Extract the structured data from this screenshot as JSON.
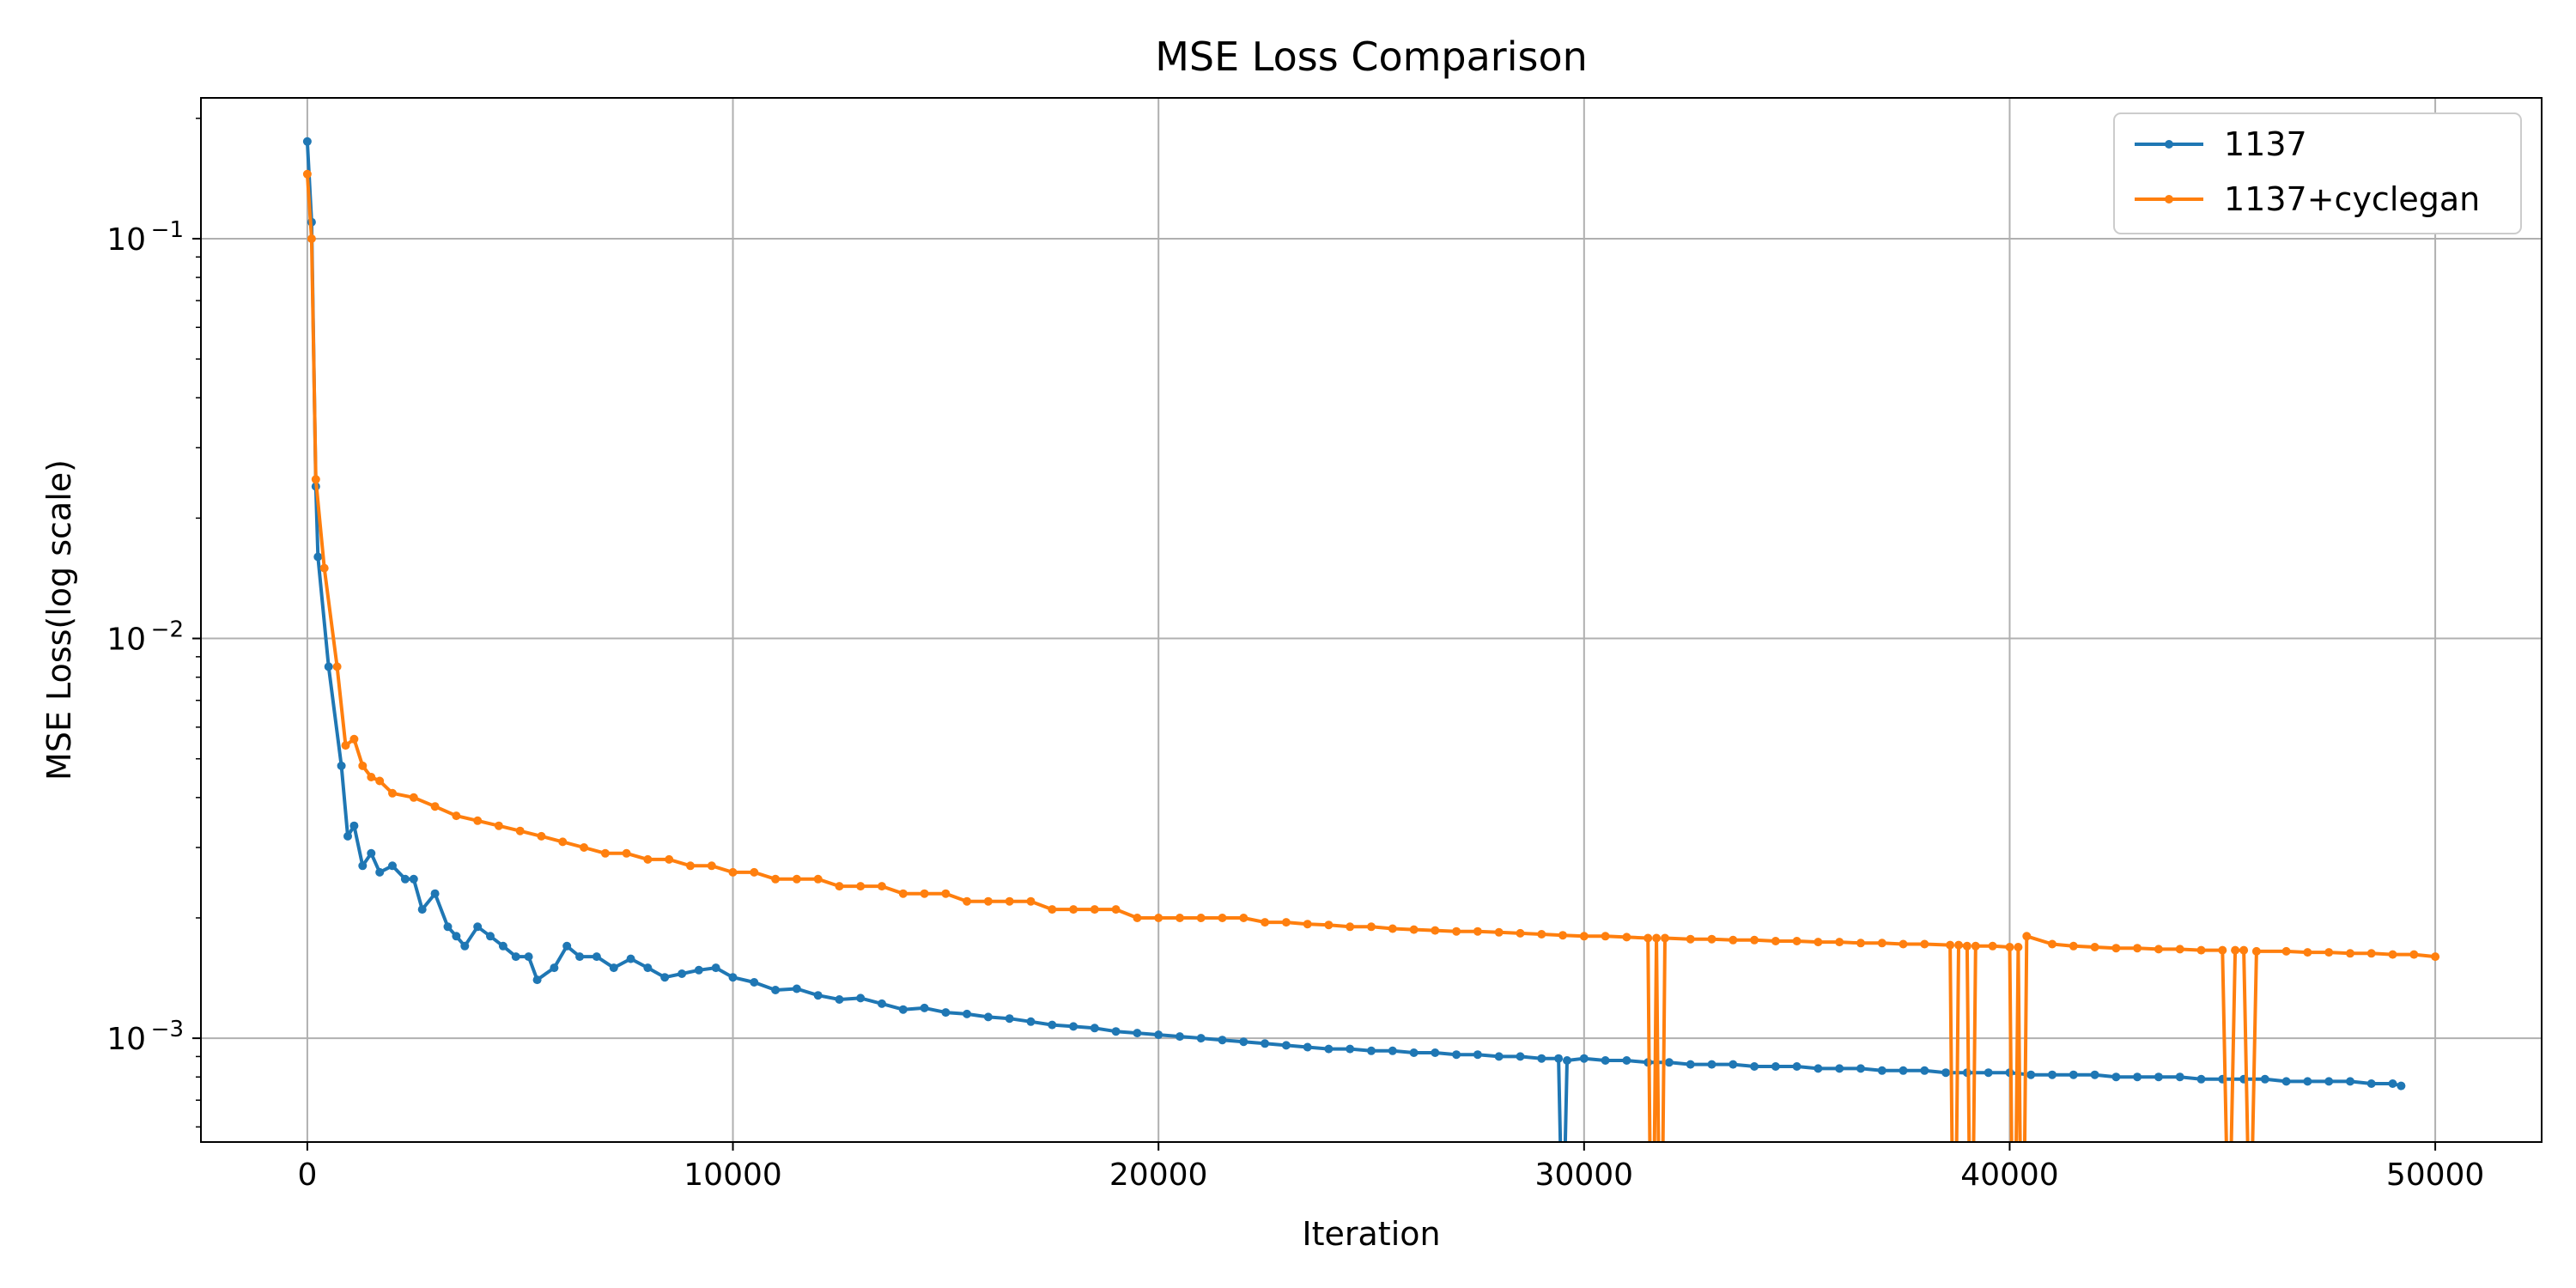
{
  "chart_data": {
    "type": "line",
    "title": "MSE Loss Comparison",
    "xlabel": "Iteration",
    "ylabel": "MSE Loss(log scale)",
    "xlim": [
      -2500,
      52500
    ],
    "ylim": [
      0.00055,
      0.225
    ],
    "yscale": "log",
    "grid": true,
    "legend_position": "top-right",
    "x_ticks": [
      0,
      10000,
      20000,
      30000,
      40000,
      50000
    ],
    "x_tick_labels": [
      "0",
      "10000",
      "20000",
      "30000",
      "40000",
      "50000"
    ],
    "y_ticks": [
      0.001,
      0.01,
      0.1
    ],
    "y_tick_labels": [
      {
        "base": "10",
        "exp": "−3"
      },
      {
        "base": "10",
        "exp": "−2"
      },
      {
        "base": "10",
        "exp": "−1"
      }
    ],
    "series": [
      {
        "name": "1137",
        "color": "#1f77b4",
        "points": [
          [
            0,
            0.175
          ],
          [
            100,
            0.11
          ],
          [
            200,
            0.024
          ],
          [
            250,
            0.016
          ],
          [
            500,
            0.0085
          ],
          [
            800,
            0.0048
          ],
          [
            950,
            0.0032
          ],
          [
            1100,
            0.0034
          ],
          [
            1300,
            0.0027
          ],
          [
            1500,
            0.0029
          ],
          [
            1700,
            0.0026
          ],
          [
            2000,
            0.0027
          ],
          [
            2300,
            0.0025
          ],
          [
            2500,
            0.0025
          ],
          [
            2700,
            0.0021
          ],
          [
            3000,
            0.0023
          ],
          [
            3300,
            0.0019
          ],
          [
            3500,
            0.0018
          ],
          [
            3700,
            0.0017
          ],
          [
            4000,
            0.0019
          ],
          [
            4300,
            0.0018
          ],
          [
            4600,
            0.0017
          ],
          [
            4900,
            0.0016
          ],
          [
            5200,
            0.0016
          ],
          [
            5400,
            0.0014
          ],
          [
            5800,
            0.0015
          ],
          [
            6100,
            0.0017
          ],
          [
            6400,
            0.0016
          ],
          [
            6800,
            0.0016
          ],
          [
            7200,
            0.0015
          ],
          [
            7600,
            0.00158
          ],
          [
            8000,
            0.0015
          ],
          [
            8400,
            0.00142
          ],
          [
            8800,
            0.00145
          ],
          [
            9200,
            0.00148
          ],
          [
            9600,
            0.0015
          ],
          [
            10000,
            0.00142
          ],
          [
            10500,
            0.00138
          ],
          [
            11000,
            0.00132
          ],
          [
            11500,
            0.00133
          ],
          [
            12000,
            0.00128
          ],
          [
            12500,
            0.00125
          ],
          [
            13000,
            0.00126
          ],
          [
            13500,
            0.00122
          ],
          [
            14000,
            0.00118
          ],
          [
            14500,
            0.00119
          ],
          [
            15000,
            0.00116
          ],
          [
            15500,
            0.00115
          ],
          [
            16000,
            0.00113
          ],
          [
            16500,
            0.00112
          ],
          [
            17000,
            0.0011
          ],
          [
            17500,
            0.00108
          ],
          [
            18000,
            0.00107
          ],
          [
            18500,
            0.00106
          ],
          [
            19000,
            0.00104
          ],
          [
            19500,
            0.00103
          ],
          [
            20000,
            0.00102
          ],
          [
            20500,
            0.00101
          ],
          [
            21000,
            0.001
          ],
          [
            21500,
            0.00099
          ],
          [
            22000,
            0.00098
          ],
          [
            22500,
            0.00097
          ],
          [
            23000,
            0.00096
          ],
          [
            23500,
            0.00095
          ],
          [
            24000,
            0.00094
          ],
          [
            24500,
            0.00094
          ],
          [
            25000,
            0.00093
          ],
          [
            25500,
            0.00093
          ],
          [
            26000,
            0.00092
          ],
          [
            26500,
            0.00092
          ],
          [
            27000,
            0.00091
          ],
          [
            27500,
            0.00091
          ],
          [
            28000,
            0.0009
          ],
          [
            28500,
            0.0009
          ],
          [
            29000,
            0.00089
          ],
          [
            29400,
            0.00089
          ],
          [
            29450,
            0.0005
          ],
          [
            29550,
            0.0005
          ],
          [
            29600,
            0.00088
          ],
          [
            30000,
            0.00089
          ],
          [
            30500,
            0.00088
          ],
          [
            31000,
            0.00088
          ],
          [
            31500,
            0.00087
          ],
          [
            32000,
            0.00087
          ],
          [
            32500,
            0.00086
          ],
          [
            33000,
            0.00086
          ],
          [
            33500,
            0.00086
          ],
          [
            34000,
            0.00085
          ],
          [
            34500,
            0.00085
          ],
          [
            35000,
            0.00085
          ],
          [
            35500,
            0.00084
          ],
          [
            36000,
            0.00084
          ],
          [
            36500,
            0.00084
          ],
          [
            37000,
            0.00083
          ],
          [
            37500,
            0.00083
          ],
          [
            38000,
            0.00083
          ],
          [
            38500,
            0.00082
          ],
          [
            39000,
            0.00082
          ],
          [
            39500,
            0.00082
          ],
          [
            40000,
            0.00082
          ],
          [
            40500,
            0.00081
          ],
          [
            41000,
            0.00081
          ],
          [
            41500,
            0.00081
          ],
          [
            42000,
            0.00081
          ],
          [
            42500,
            0.0008
          ],
          [
            43000,
            0.0008
          ],
          [
            43500,
            0.0008
          ],
          [
            44000,
            0.0008
          ],
          [
            44500,
            0.00079
          ],
          [
            45000,
            0.00079
          ],
          [
            45500,
            0.00079
          ],
          [
            46000,
            0.00079
          ],
          [
            46500,
            0.00078
          ],
          [
            47000,
            0.00078
          ],
          [
            47500,
            0.00078
          ],
          [
            48000,
            0.00078
          ],
          [
            48500,
            0.00077
          ],
          [
            49000,
            0.00077
          ],
          [
            49200,
            0.00076
          ]
        ]
      },
      {
        "name": "1137+cyclegan",
        "color": "#ff7f0e",
        "points": [
          [
            0,
            0.145
          ],
          [
            100,
            0.1
          ],
          [
            200,
            0.025
          ],
          [
            400,
            0.015
          ],
          [
            700,
            0.0085
          ],
          [
            900,
            0.0054
          ],
          [
            1100,
            0.0056
          ],
          [
            1300,
            0.0048
          ],
          [
            1500,
            0.0045
          ],
          [
            1700,
            0.0044
          ],
          [
            2000,
            0.0041
          ],
          [
            2500,
            0.004
          ],
          [
            3000,
            0.0038
          ],
          [
            3500,
            0.0036
          ],
          [
            4000,
            0.0035
          ],
          [
            4500,
            0.0034
          ],
          [
            5000,
            0.0033
          ],
          [
            5500,
            0.0032
          ],
          [
            6000,
            0.0031
          ],
          [
            6500,
            0.003
          ],
          [
            7000,
            0.0029
          ],
          [
            7500,
            0.0029
          ],
          [
            8000,
            0.0028
          ],
          [
            8500,
            0.0028
          ],
          [
            9000,
            0.0027
          ],
          [
            9500,
            0.0027
          ],
          [
            10000,
            0.0026
          ],
          [
            10500,
            0.0026
          ],
          [
            11000,
            0.0025
          ],
          [
            11500,
            0.0025
          ],
          [
            12000,
            0.0025
          ],
          [
            12500,
            0.0024
          ],
          [
            13000,
            0.0024
          ],
          [
            13500,
            0.0024
          ],
          [
            14000,
            0.0023
          ],
          [
            14500,
            0.0023
          ],
          [
            15000,
            0.0023
          ],
          [
            15500,
            0.0022
          ],
          [
            16000,
            0.0022
          ],
          [
            16500,
            0.0022
          ],
          [
            17000,
            0.0022
          ],
          [
            17500,
            0.0021
          ],
          [
            18000,
            0.0021
          ],
          [
            18500,
            0.0021
          ],
          [
            19000,
            0.0021
          ],
          [
            19500,
            0.002
          ],
          [
            20000,
            0.002
          ],
          [
            20500,
            0.002
          ],
          [
            21000,
            0.002
          ],
          [
            21500,
            0.002
          ],
          [
            22000,
            0.002
          ],
          [
            22500,
            0.00195
          ],
          [
            23000,
            0.00195
          ],
          [
            23500,
            0.00193
          ],
          [
            24000,
            0.00192
          ],
          [
            24500,
            0.0019
          ],
          [
            25000,
            0.0019
          ],
          [
            25500,
            0.00188
          ],
          [
            26000,
            0.00187
          ],
          [
            26500,
            0.00186
          ],
          [
            27000,
            0.00185
          ],
          [
            27500,
            0.00185
          ],
          [
            28000,
            0.00184
          ],
          [
            28500,
            0.00183
          ],
          [
            29000,
            0.00182
          ],
          [
            29500,
            0.00181
          ],
          [
            30000,
            0.0018
          ],
          [
            30500,
            0.0018
          ],
          [
            31000,
            0.00179
          ],
          [
            31500,
            0.00178
          ],
          [
            31550,
            0.0005
          ],
          [
            31650,
            0.0005
          ],
          [
            31700,
            0.00178
          ],
          [
            31750,
            0.0005
          ],
          [
            31850,
            0.0005
          ],
          [
            31900,
            0.00178
          ],
          [
            32500,
            0.00177
          ],
          [
            33000,
            0.00177
          ],
          [
            33500,
            0.00176
          ],
          [
            34000,
            0.00176
          ],
          [
            34500,
            0.00175
          ],
          [
            35000,
            0.00175
          ],
          [
            35500,
            0.00174
          ],
          [
            36000,
            0.00174
          ],
          [
            36500,
            0.00173
          ],
          [
            37000,
            0.00173
          ],
          [
            37500,
            0.00172
          ],
          [
            38000,
            0.00172
          ],
          [
            38600,
            0.00171
          ],
          [
            38650,
            0.0005
          ],
          [
            38750,
            0.0005
          ],
          [
            38800,
            0.00171
          ],
          [
            39000,
            0.0017
          ],
          [
            39050,
            0.0005
          ],
          [
            39150,
            0.0005
          ],
          [
            39200,
            0.0017
          ],
          [
            39600,
            0.0017
          ],
          [
            40000,
            0.00169
          ],
          [
            40050,
            0.0005
          ],
          [
            40150,
            0.0005
          ],
          [
            40200,
            0.00169
          ],
          [
            40250,
            0.0005
          ],
          [
            40350,
            0.0005
          ],
          [
            40400,
            0.0018
          ],
          [
            41000,
            0.00172
          ],
          [
            41500,
            0.0017
          ],
          [
            42000,
            0.00169
          ],
          [
            42500,
            0.00168
          ],
          [
            43000,
            0.00168
          ],
          [
            43500,
            0.00167
          ],
          [
            44000,
            0.00167
          ],
          [
            44500,
            0.00166
          ],
          [
            45000,
            0.00166
          ],
          [
            45100,
            0.0005
          ],
          [
            45200,
            0.0005
          ],
          [
            45300,
            0.00166
          ],
          [
            45500,
            0.00166
          ],
          [
            45600,
            0.0005
          ],
          [
            45700,
            0.0005
          ],
          [
            45800,
            0.00165
          ],
          [
            46500,
            0.00165
          ],
          [
            47000,
            0.00164
          ],
          [
            47500,
            0.00164
          ],
          [
            48000,
            0.00163
          ],
          [
            48500,
            0.00163
          ],
          [
            49000,
            0.00162
          ],
          [
            49500,
            0.00162
          ],
          [
            50000,
            0.0016
          ]
        ]
      }
    ]
  }
}
